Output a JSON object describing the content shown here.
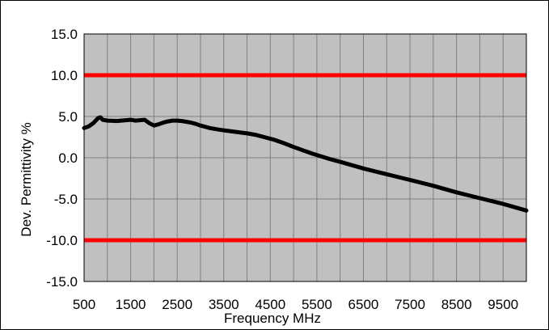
{
  "chart_data": {
    "type": "line",
    "title": "",
    "xlabel": "Frequency MHz",
    "ylabel": "Dev. Permittivity %",
    "xlim": [
      500,
      10000
    ],
    "ylim": [
      -15,
      15
    ],
    "x_ticks": [
      500,
      1500,
      2500,
      3500,
      4500,
      5500,
      6500,
      7500,
      8500,
      9500
    ],
    "x_tick_labels": [
      "500",
      "1500",
      "2500",
      "3500",
      "4500",
      "5500",
      "6500",
      "7500",
      "8500",
      "9500"
    ],
    "y_ticks": [
      15,
      10,
      5,
      0,
      -5,
      -10,
      -15
    ],
    "y_tick_labels": [
      "15.0",
      "10.0",
      "5.0",
      "0.0",
      "-5.0",
      "-10.0",
      "-15.0"
    ],
    "grid": true,
    "legend": "none",
    "colors": {
      "plot_background": "#c0c0c0",
      "grid": "#808080",
      "series": "#000000",
      "limit": "#ff0000",
      "border": "#000000"
    },
    "limit_lines": [
      10,
      -10
    ],
    "series": [
      {
        "x": [
          500,
          600,
          700,
          800,
          850,
          900,
          1000,
          1200,
          1400,
          1500,
          1600,
          1700,
          1800,
          1900,
          2000,
          2100,
          2200,
          2300,
          2400,
          2500,
          2600,
          2700,
          2800,
          2900,
          3000,
          3200,
          3400,
          3600,
          3800,
          4000,
          4200,
          4400,
          4600,
          4800,
          5000,
          5200,
          5400,
          5600,
          5800,
          6000,
          6500,
          7000,
          7500,
          8000,
          8500,
          9000,
          9500,
          10000
        ],
        "y": [
          3.6,
          3.8,
          4.2,
          4.8,
          4.9,
          4.6,
          4.5,
          4.45,
          4.55,
          4.6,
          4.5,
          4.55,
          4.6,
          4.2,
          3.9,
          4.05,
          4.25,
          4.4,
          4.5,
          4.5,
          4.45,
          4.35,
          4.25,
          4.1,
          3.9,
          3.6,
          3.4,
          3.25,
          3.1,
          2.95,
          2.75,
          2.45,
          2.15,
          1.75,
          1.3,
          0.9,
          0.5,
          0.15,
          -0.2,
          -0.5,
          -1.3,
          -2.0,
          -2.7,
          -3.4,
          -4.2,
          -4.9,
          -5.6,
          -6.4
        ]
      }
    ]
  }
}
